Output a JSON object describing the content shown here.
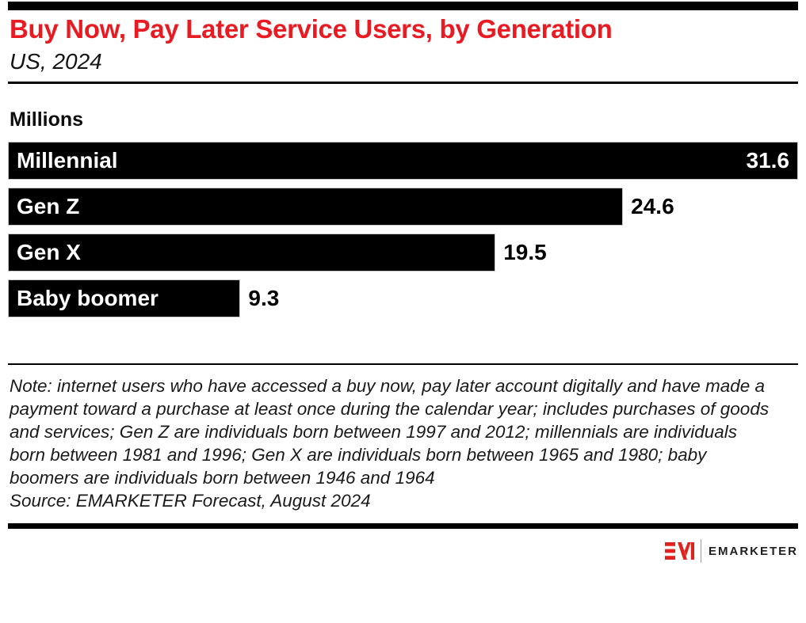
{
  "header": {
    "title": "Buy Now, Pay Later Service Users, by Generation",
    "subtitle": "US, 2024"
  },
  "chart": {
    "unit_label": "Millions"
  },
  "chart_data": {
    "type": "bar",
    "orientation": "horizontal",
    "categories": [
      "Millennial",
      "Gen Z",
      "Gen X",
      "Baby boomer"
    ],
    "values": [
      31.6,
      24.6,
      19.5,
      9.3
    ],
    "title": "Buy Now, Pay Later Service Users, by Generation",
    "subtitle": "US, 2024",
    "xlabel": "",
    "ylabel": "Millions",
    "xlim": [
      0,
      31.6
    ],
    "grid": false,
    "legend": false,
    "bar_color": "#000000",
    "value_labels": [
      "31.6",
      "24.6",
      "19.5",
      "9.3"
    ]
  },
  "footer": {
    "note": "Note: internet users who have accessed a buy now, pay later account digitally and have made a payment toward a purchase at least once during the calendar year; includes purchases of goods and services; Gen Z are individuals born between 1997 and 2012; millennials are individuals born between 1981 and 1996; Gen X are individuals born between 1965 and 1980; baby boomers are individuals born between 1946 and 1964",
    "source": "Source: EMARKETER Forecast, August 2024"
  },
  "logo": {
    "mark": "EM",
    "text": "EMARKETER"
  },
  "colors": {
    "accent_red": "#e81b22",
    "logo_red": "#e0231e",
    "bar": "#000000"
  }
}
